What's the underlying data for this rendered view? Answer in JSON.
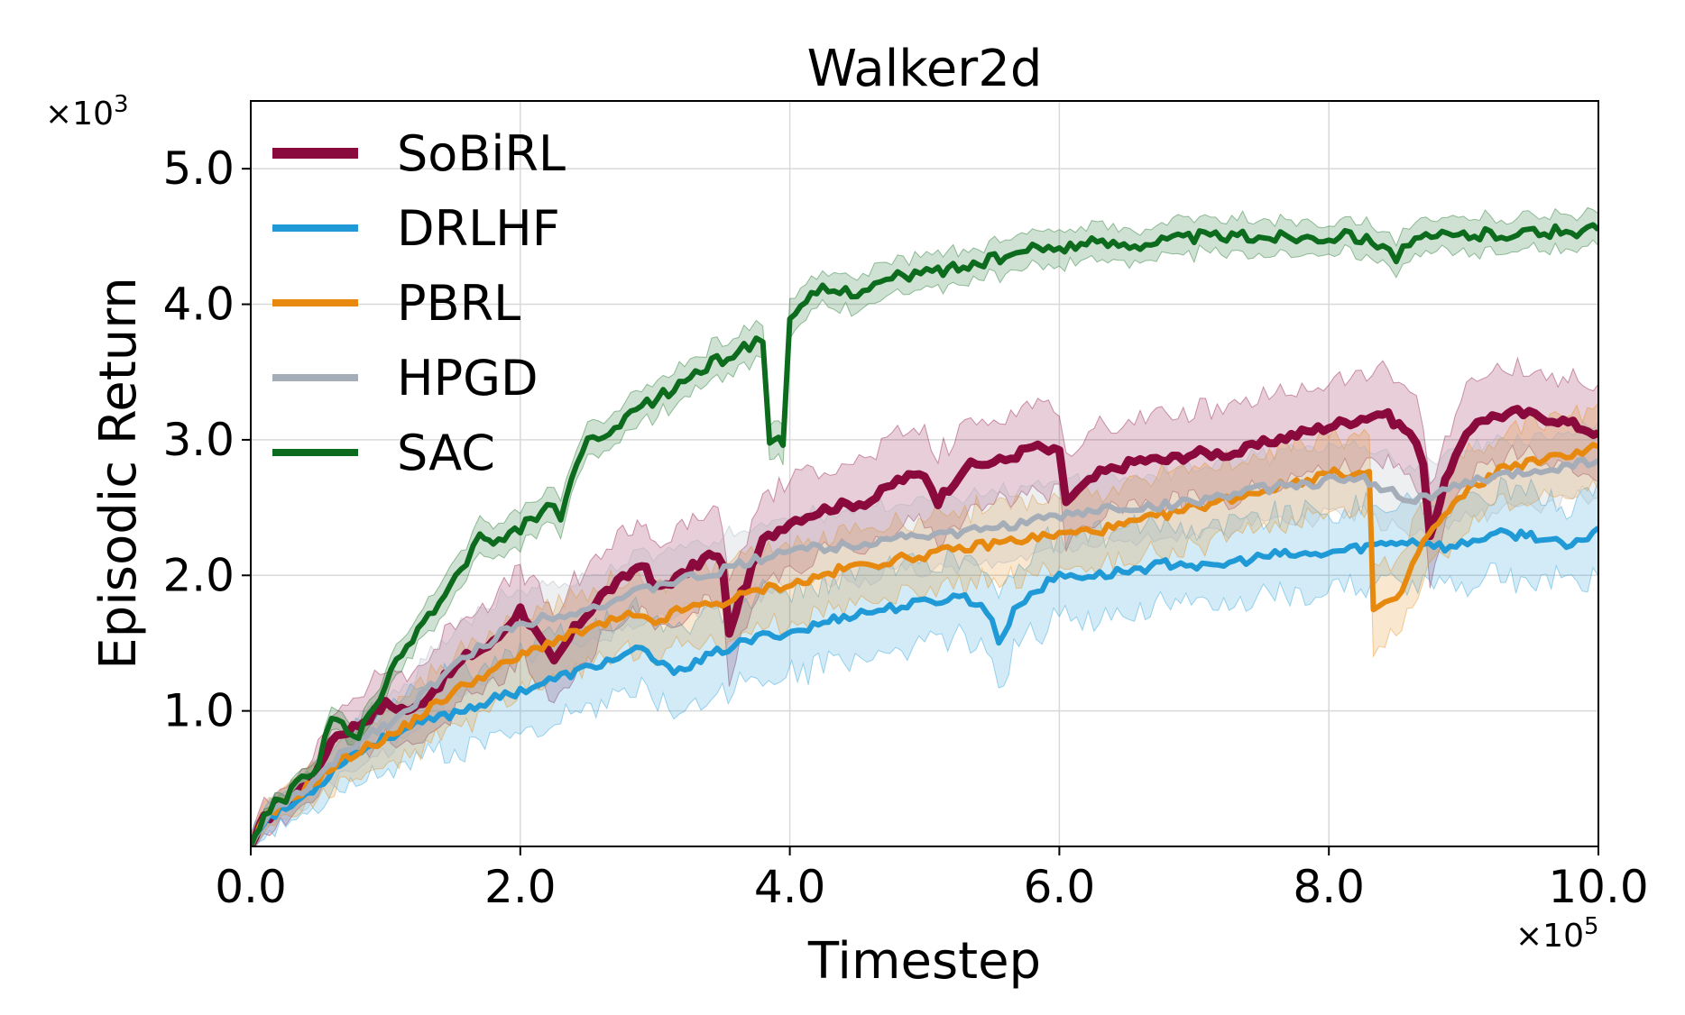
{
  "chart_data": {
    "type": "line",
    "title": "Walker2d",
    "xlabel": "Timestep",
    "ylabel": "Episodic Return",
    "x_multiplier": "×10",
    "x_multiplier_exp": "5",
    "y_multiplier": "×10",
    "y_multiplier_exp": "3",
    "xlim": [
      0,
      10
    ],
    "ylim": [
      0,
      5.5
    ],
    "xticks": [
      0,
      2,
      4,
      6,
      8,
      10
    ],
    "xtick_labels": [
      "0.0",
      "2.0",
      "4.0",
      "6.0",
      "8.0",
      "10.0"
    ],
    "yticks": [
      1,
      2,
      3,
      4,
      5
    ],
    "ytick_labels": [
      "1.0",
      "2.0",
      "3.0",
      "4.0",
      "5.0"
    ],
    "grid": true,
    "legend_position": "top-left",
    "series": [
      {
        "name": "SoBiRL",
        "color": "#8b0a3e",
        "points": [
          [
            0,
            0
          ],
          [
            0.1,
            0.2
          ],
          [
            0.3,
            0.35
          ],
          [
            0.5,
            0.55
          ],
          [
            0.6,
            0.8
          ],
          [
            0.8,
            0.9
          ],
          [
            1.0,
            1.05
          ],
          [
            1.2,
            1.0
          ],
          [
            1.4,
            1.2
          ],
          [
            1.6,
            1.4
          ],
          [
            1.8,
            1.5
          ],
          [
            2.0,
            1.75
          ],
          [
            2.1,
            1.6
          ],
          [
            2.25,
            1.35
          ],
          [
            2.4,
            1.6
          ],
          [
            2.6,
            1.85
          ],
          [
            2.8,
            2.0
          ],
          [
            2.9,
            2.1
          ],
          [
            3.0,
            1.9
          ],
          [
            3.2,
            2.0
          ],
          [
            3.4,
            2.15
          ],
          [
            3.5,
            2.1
          ],
          [
            3.55,
            1.55
          ],
          [
            3.6,
            1.75
          ],
          [
            3.8,
            2.25
          ],
          [
            4.0,
            2.4
          ],
          [
            4.3,
            2.5
          ],
          [
            4.6,
            2.55
          ],
          [
            4.8,
            2.7
          ],
          [
            5.0,
            2.75
          ],
          [
            5.1,
            2.55
          ],
          [
            5.3,
            2.8
          ],
          [
            5.6,
            2.85
          ],
          [
            5.8,
            2.95
          ],
          [
            6.0,
            2.9
          ],
          [
            6.05,
            2.55
          ],
          [
            6.3,
            2.75
          ],
          [
            6.6,
            2.85
          ],
          [
            6.8,
            2.85
          ],
          [
            7.0,
            2.9
          ],
          [
            7.3,
            2.9
          ],
          [
            7.6,
            3.0
          ],
          [
            7.8,
            3.05
          ],
          [
            8.0,
            3.1
          ],
          [
            8.2,
            3.15
          ],
          [
            8.4,
            3.2
          ],
          [
            8.6,
            3.05
          ],
          [
            8.7,
            2.85
          ],
          [
            8.75,
            2.3
          ],
          [
            8.9,
            2.8
          ],
          [
            9.1,
            3.15
          ],
          [
            9.4,
            3.2
          ],
          [
            9.7,
            3.15
          ],
          [
            10.0,
            3.05
          ]
        ],
        "band": [
          0.25,
          0.4
        ]
      },
      {
        "name": "DRLHF",
        "color": "#1f9ad6",
        "points": [
          [
            0,
            0
          ],
          [
            0.1,
            0.2
          ],
          [
            0.3,
            0.3
          ],
          [
            0.5,
            0.45
          ],
          [
            0.7,
            0.65
          ],
          [
            0.9,
            0.75
          ],
          [
            1.1,
            0.85
          ],
          [
            1.4,
            0.95
          ],
          [
            1.7,
            1.05
          ],
          [
            2.0,
            1.15
          ],
          [
            2.3,
            1.25
          ],
          [
            2.6,
            1.35
          ],
          [
            2.9,
            1.45
          ],
          [
            3.1,
            1.3
          ],
          [
            3.3,
            1.35
          ],
          [
            3.5,
            1.45
          ],
          [
            3.8,
            1.55
          ],
          [
            4.1,
            1.6
          ],
          [
            4.4,
            1.7
          ],
          [
            4.7,
            1.75
          ],
          [
            5.0,
            1.8
          ],
          [
            5.3,
            1.85
          ],
          [
            5.5,
            1.7
          ],
          [
            5.55,
            1.5
          ],
          [
            5.7,
            1.8
          ],
          [
            6.0,
            2.0
          ],
          [
            6.3,
            2.0
          ],
          [
            6.6,
            2.05
          ],
          [
            6.9,
            2.1
          ],
          [
            7.1,
            2.05
          ],
          [
            7.3,
            2.1
          ],
          [
            7.6,
            2.15
          ],
          [
            7.9,
            2.15
          ],
          [
            8.2,
            2.2
          ],
          [
            8.5,
            2.25
          ],
          [
            8.7,
            2.25
          ],
          [
            8.9,
            2.2
          ],
          [
            9.2,
            2.3
          ],
          [
            9.5,
            2.3
          ],
          [
            9.8,
            2.2
          ],
          [
            10.0,
            2.35
          ]
        ],
        "band": [
          0.2,
          0.4
        ]
      },
      {
        "name": "PBRL",
        "color": "#e6890e",
        "points": [
          [
            0,
            0
          ],
          [
            0.1,
            0.2
          ],
          [
            0.3,
            0.35
          ],
          [
            0.5,
            0.5
          ],
          [
            0.7,
            0.65
          ],
          [
            0.9,
            0.75
          ],
          [
            1.1,
            0.85
          ],
          [
            1.3,
            1.0
          ],
          [
            1.6,
            1.2
          ],
          [
            1.9,
            1.35
          ],
          [
            2.2,
            1.5
          ],
          [
            2.5,
            1.6
          ],
          [
            2.8,
            1.7
          ],
          [
            3.0,
            1.65
          ],
          [
            3.2,
            1.75
          ],
          [
            3.5,
            1.8
          ],
          [
            3.8,
            1.9
          ],
          [
            4.1,
            1.95
          ],
          [
            4.4,
            2.05
          ],
          [
            4.7,
            2.1
          ],
          [
            5.0,
            2.15
          ],
          [
            5.3,
            2.2
          ],
          [
            5.6,
            2.25
          ],
          [
            6.0,
            2.3
          ],
          [
            6.4,
            2.35
          ],
          [
            6.8,
            2.45
          ],
          [
            7.2,
            2.55
          ],
          [
            7.6,
            2.65
          ],
          [
            8.0,
            2.75
          ],
          [
            8.3,
            2.75
          ],
          [
            8.33,
            1.75
          ],
          [
            8.5,
            1.8
          ],
          [
            8.7,
            2.25
          ],
          [
            9.0,
            2.6
          ],
          [
            9.3,
            2.8
          ],
          [
            9.6,
            2.85
          ],
          [
            10.0,
            2.95
          ]
        ],
        "band": [
          0.2,
          0.35
        ]
      },
      {
        "name": "HPGD",
        "color": "#a5adb8",
        "points": [
          [
            0,
            0
          ],
          [
            0.1,
            0.2
          ],
          [
            0.3,
            0.35
          ],
          [
            0.5,
            0.5
          ],
          [
            0.7,
            0.7
          ],
          [
            0.9,
            0.85
          ],
          [
            1.1,
            0.95
          ],
          [
            1.3,
            1.15
          ],
          [
            1.6,
            1.4
          ],
          [
            1.9,
            1.6
          ],
          [
            2.2,
            1.7
          ],
          [
            2.5,
            1.75
          ],
          [
            2.8,
            1.85
          ],
          [
            3.1,
            1.95
          ],
          [
            3.4,
            2.0
          ],
          [
            3.7,
            2.1
          ],
          [
            4.0,
            2.2
          ],
          [
            4.3,
            2.2
          ],
          [
            4.6,
            2.25
          ],
          [
            4.9,
            2.3
          ],
          [
            5.2,
            2.3
          ],
          [
            5.5,
            2.35
          ],
          [
            5.8,
            2.4
          ],
          [
            6.1,
            2.45
          ],
          [
            6.4,
            2.5
          ],
          [
            6.7,
            2.5
          ],
          [
            7.0,
            2.55
          ],
          [
            7.3,
            2.6
          ],
          [
            7.6,
            2.65
          ],
          [
            8.0,
            2.7
          ],
          [
            8.3,
            2.7
          ],
          [
            8.6,
            2.55
          ],
          [
            8.8,
            2.6
          ],
          [
            9.1,
            2.7
          ],
          [
            9.4,
            2.75
          ],
          [
            9.7,
            2.8
          ],
          [
            10.0,
            2.85
          ]
        ],
        "band": [
          0.2,
          0.3
        ]
      },
      {
        "name": "SAC",
        "color": "#0c6b1c",
        "points": [
          [
            0,
            0
          ],
          [
            0.1,
            0.25
          ],
          [
            0.3,
            0.4
          ],
          [
            0.5,
            0.6
          ],
          [
            0.6,
            0.95
          ],
          [
            0.8,
            0.8
          ],
          [
            1.0,
            1.2
          ],
          [
            1.2,
            1.55
          ],
          [
            1.4,
            1.8
          ],
          [
            1.6,
            2.1
          ],
          [
            1.7,
            2.3
          ],
          [
            1.8,
            2.2
          ],
          [
            2.0,
            2.35
          ],
          [
            2.2,
            2.5
          ],
          [
            2.3,
            2.45
          ],
          [
            2.5,
            3.0
          ],
          [
            2.7,
            3.05
          ],
          [
            2.9,
            3.25
          ],
          [
            3.1,
            3.35
          ],
          [
            3.3,
            3.5
          ],
          [
            3.5,
            3.6
          ],
          [
            3.7,
            3.7
          ],
          [
            3.8,
            3.75
          ],
          [
            3.85,
            3.0
          ],
          [
            3.95,
            3.0
          ],
          [
            4.0,
            3.85
          ],
          [
            4.2,
            4.1
          ],
          [
            4.5,
            4.1
          ],
          [
            4.8,
            4.2
          ],
          [
            5.1,
            4.25
          ],
          [
            5.4,
            4.3
          ],
          [
            5.8,
            4.4
          ],
          [
            6.2,
            4.45
          ],
          [
            6.6,
            4.45
          ],
          [
            7.0,
            4.5
          ],
          [
            7.4,
            4.5
          ],
          [
            7.8,
            4.5
          ],
          [
            8.2,
            4.5
          ],
          [
            8.4,
            4.45
          ],
          [
            8.5,
            4.35
          ],
          [
            8.6,
            4.45
          ],
          [
            8.8,
            4.5
          ],
          [
            9.2,
            4.52
          ],
          [
            9.6,
            4.53
          ],
          [
            10.0,
            4.55
          ]
        ],
        "band": [
          0.1,
          0.15
        ]
      }
    ]
  }
}
